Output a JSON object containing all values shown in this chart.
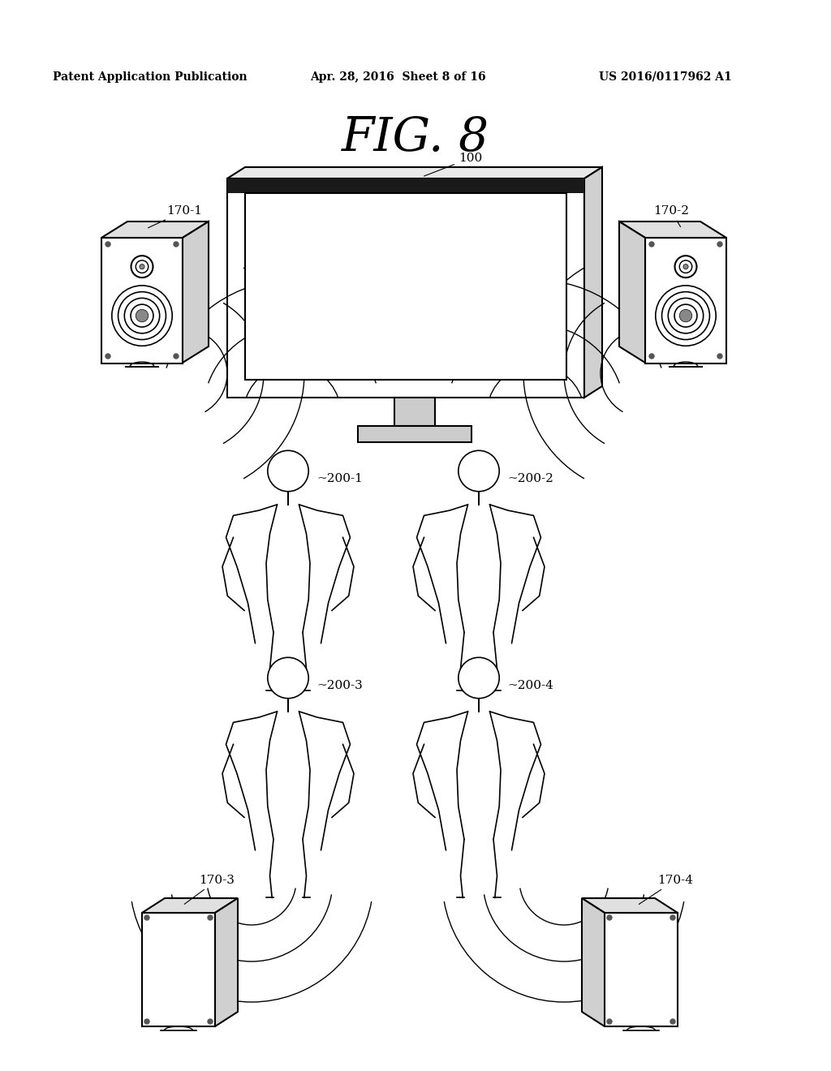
{
  "title": "FIG. 8",
  "header_left": "Patent Application Publication",
  "header_mid": "Apr. 28, 2016  Sheet 8 of 16",
  "header_right": "US 2016/0117962 A1",
  "bg_color": "#ffffff",
  "label_100": "100",
  "label_170_1": "170-1",
  "label_170_2": "170-2",
  "label_170_3": "170-3",
  "label_170_4": "170-4",
  "label_200_1": "~200-1",
  "label_200_2": "~200-2",
  "label_200_3": "~200-3",
  "label_200_4": "~200-4"
}
